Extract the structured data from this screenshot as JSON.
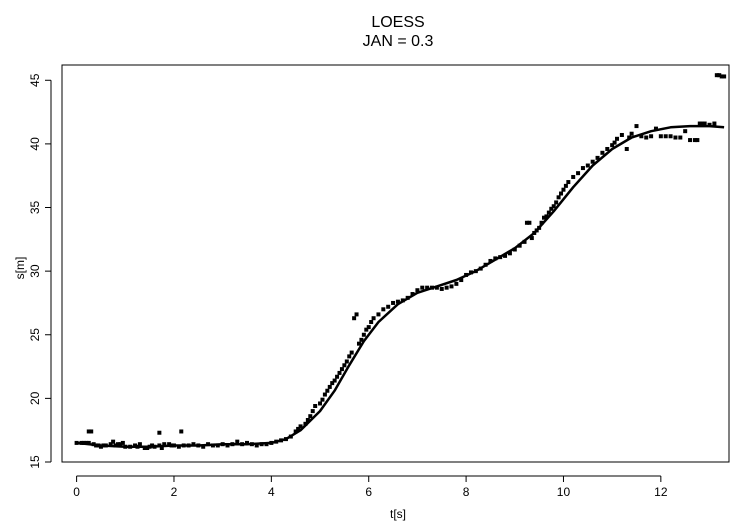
{
  "chart_data": {
    "type": "scatter",
    "title": "LOESS",
    "subtitle": "JAN = 0.3",
    "xlabel": "t[s]",
    "ylabel": "s[m]",
    "xlim": [
      -0.3,
      13.4
    ],
    "ylim": [
      15.0,
      46.2
    ],
    "x_ticks": [
      0,
      2,
      4,
      6,
      8,
      10,
      12
    ],
    "y_ticks": [
      15,
      20,
      25,
      30,
      35,
      40,
      45
    ],
    "x_tick_labels": [
      "0",
      "2",
      "4",
      "6",
      "8",
      "10",
      "12"
    ],
    "y_tick_labels": [
      "15",
      "20",
      "25",
      "30",
      "35",
      "40",
      "45"
    ],
    "grid": false,
    "legend": "none",
    "colors": {
      "points": "#000000",
      "line": "#000000",
      "axes": "#000000"
    },
    "series": [
      {
        "kind": "points",
        "points": [
          [
            0.0,
            16.5
          ],
          [
            0.1,
            16.5
          ],
          [
            0.15,
            16.5
          ],
          [
            0.2,
            16.5
          ],
          [
            0.25,
            16.5
          ],
          [
            0.25,
            17.4
          ],
          [
            0.3,
            17.4
          ],
          [
            0.35,
            16.4
          ],
          [
            0.4,
            16.3
          ],
          [
            0.45,
            16.3
          ],
          [
            0.5,
            16.2
          ],
          [
            0.55,
            16.3
          ],
          [
            0.6,
            16.3
          ],
          [
            0.7,
            16.4
          ],
          [
            0.75,
            16.6
          ],
          [
            0.8,
            16.3
          ],
          [
            0.85,
            16.4
          ],
          [
            0.9,
            16.4
          ],
          [
            0.95,
            16.5
          ],
          [
            1.0,
            16.2
          ],
          [
            1.1,
            16.2
          ],
          [
            1.2,
            16.3
          ],
          [
            1.25,
            16.2
          ],
          [
            1.3,
            16.4
          ],
          [
            1.4,
            16.1
          ],
          [
            1.45,
            16.1
          ],
          [
            1.5,
            16.2
          ],
          [
            1.55,
            16.3
          ],
          [
            1.6,
            16.2
          ],
          [
            1.7,
            16.3
          ],
          [
            1.7,
            17.3
          ],
          [
            1.75,
            16.1
          ],
          [
            1.8,
            16.4
          ],
          [
            1.9,
            16.4
          ],
          [
            1.95,
            16.3
          ],
          [
            2.0,
            16.3
          ],
          [
            2.1,
            16.2
          ],
          [
            2.15,
            17.4
          ],
          [
            2.2,
            16.3
          ],
          [
            2.3,
            16.3
          ],
          [
            2.4,
            16.4
          ],
          [
            2.5,
            16.3
          ],
          [
            2.6,
            16.2
          ],
          [
            2.7,
            16.4
          ],
          [
            2.8,
            16.3
          ],
          [
            2.9,
            16.3
          ],
          [
            3.0,
            16.4
          ],
          [
            3.1,
            16.3
          ],
          [
            3.2,
            16.4
          ],
          [
            3.3,
            16.6
          ],
          [
            3.4,
            16.4
          ],
          [
            3.5,
            16.5
          ],
          [
            3.6,
            16.4
          ],
          [
            3.7,
            16.3
          ],
          [
            3.8,
            16.4
          ],
          [
            3.9,
            16.4
          ],
          [
            4.0,
            16.5
          ],
          [
            4.1,
            16.6
          ],
          [
            4.2,
            16.7
          ],
          [
            4.3,
            16.8
          ],
          [
            4.4,
            17.0
          ],
          [
            4.5,
            17.4
          ],
          [
            4.55,
            17.6
          ],
          [
            4.6,
            17.8
          ],
          [
            4.7,
            18.0
          ],
          [
            4.75,
            18.3
          ],
          [
            4.8,
            18.6
          ],
          [
            4.85,
            19.0
          ],
          [
            4.9,
            19.4
          ],
          [
            5.0,
            19.6
          ],
          [
            5.05,
            19.9
          ],
          [
            5.1,
            20.3
          ],
          [
            5.15,
            20.6
          ],
          [
            5.2,
            20.9
          ],
          [
            5.25,
            21.2
          ],
          [
            5.3,
            21.4
          ],
          [
            5.35,
            21.7
          ],
          [
            5.4,
            22.0
          ],
          [
            5.45,
            22.3
          ],
          [
            5.5,
            22.6
          ],
          [
            5.55,
            22.9
          ],
          [
            5.6,
            23.3
          ],
          [
            5.65,
            23.6
          ],
          [
            5.7,
            26.3
          ],
          [
            5.75,
            26.6
          ],
          [
            5.8,
            24.3
          ],
          [
            5.85,
            24.6
          ],
          [
            5.9,
            25.0
          ],
          [
            5.95,
            25.4
          ],
          [
            6.0,
            25.6
          ],
          [
            6.05,
            26.0
          ],
          [
            6.1,
            26.3
          ],
          [
            6.2,
            26.6
          ],
          [
            6.3,
            27.0
          ],
          [
            6.4,
            27.2
          ],
          [
            6.5,
            27.5
          ],
          [
            6.6,
            27.6
          ],
          [
            6.7,
            27.7
          ],
          [
            6.8,
            27.9
          ],
          [
            6.9,
            28.2
          ],
          [
            7.0,
            28.5
          ],
          [
            7.1,
            28.7
          ],
          [
            7.2,
            28.7
          ],
          [
            7.3,
            28.7
          ],
          [
            7.4,
            28.7
          ],
          [
            7.5,
            28.6
          ],
          [
            7.6,
            28.7
          ],
          [
            7.7,
            28.8
          ],
          [
            7.8,
            29.0
          ],
          [
            7.9,
            29.3
          ],
          [
            8.0,
            29.7
          ],
          [
            8.1,
            29.9
          ],
          [
            8.2,
            30.0
          ],
          [
            8.3,
            30.2
          ],
          [
            8.4,
            30.5
          ],
          [
            8.5,
            30.8
          ],
          [
            8.6,
            31.0
          ],
          [
            8.7,
            31.1
          ],
          [
            8.8,
            31.2
          ],
          [
            8.9,
            31.4
          ],
          [
            9.0,
            31.7
          ],
          [
            9.1,
            32.0
          ],
          [
            9.2,
            32.3
          ],
          [
            9.25,
            33.8
          ],
          [
            9.3,
            33.8
          ],
          [
            9.35,
            32.6
          ],
          [
            9.4,
            33.0
          ],
          [
            9.45,
            33.2
          ],
          [
            9.5,
            33.4
          ],
          [
            9.55,
            33.8
          ],
          [
            9.6,
            34.2
          ],
          [
            9.65,
            34.3
          ],
          [
            9.7,
            34.6
          ],
          [
            9.75,
            34.9
          ],
          [
            9.8,
            35.1
          ],
          [
            9.85,
            35.4
          ],
          [
            9.9,
            35.8
          ],
          [
            9.95,
            36.1
          ],
          [
            10.0,
            36.4
          ],
          [
            10.05,
            36.7
          ],
          [
            10.1,
            37.0
          ],
          [
            10.2,
            37.4
          ],
          [
            10.3,
            37.7
          ],
          [
            10.4,
            38.1
          ],
          [
            10.5,
            38.3
          ],
          [
            10.6,
            38.6
          ],
          [
            10.7,
            38.9
          ],
          [
            10.8,
            39.3
          ],
          [
            10.9,
            39.6
          ],
          [
            11.0,
            39.9
          ],
          [
            11.05,
            40.1
          ],
          [
            11.1,
            40.4
          ],
          [
            11.2,
            40.7
          ],
          [
            11.3,
            39.6
          ],
          [
            11.35,
            40.5
          ],
          [
            11.4,
            40.8
          ],
          [
            11.5,
            41.4
          ],
          [
            11.6,
            40.6
          ],
          [
            11.7,
            40.5
          ],
          [
            11.8,
            40.6
          ],
          [
            11.9,
            41.2
          ],
          [
            12.0,
            40.6
          ],
          [
            12.1,
            40.6
          ],
          [
            12.2,
            40.6
          ],
          [
            12.3,
            40.5
          ],
          [
            12.4,
            40.5
          ],
          [
            12.5,
            41.0
          ],
          [
            12.6,
            40.3
          ],
          [
            12.7,
            40.3
          ],
          [
            12.75,
            40.3
          ],
          [
            12.8,
            41.6
          ],
          [
            12.85,
            41.6
          ],
          [
            12.9,
            41.6
          ],
          [
            13.0,
            41.5
          ],
          [
            13.1,
            41.6
          ],
          [
            13.15,
            45.4
          ],
          [
            13.2,
            45.4
          ],
          [
            13.25,
            45.3
          ],
          [
            13.3,
            45.3
          ]
        ]
      },
      {
        "kind": "line",
        "points": [
          [
            0.0,
            16.5
          ],
          [
            0.5,
            16.3
          ],
          [
            1.0,
            16.2
          ],
          [
            1.5,
            16.2
          ],
          [
            2.0,
            16.3
          ],
          [
            2.5,
            16.3
          ],
          [
            3.0,
            16.4
          ],
          [
            3.5,
            16.4
          ],
          [
            4.0,
            16.5
          ],
          [
            4.3,
            16.8
          ],
          [
            4.6,
            17.5
          ],
          [
            5.0,
            19.0
          ],
          [
            5.3,
            20.6
          ],
          [
            5.6,
            22.6
          ],
          [
            5.9,
            24.5
          ],
          [
            6.2,
            26.0
          ],
          [
            6.6,
            27.4
          ],
          [
            7.0,
            28.3
          ],
          [
            7.4,
            28.8
          ],
          [
            7.8,
            29.3
          ],
          [
            8.2,
            30.0
          ],
          [
            8.6,
            30.9
          ],
          [
            9.0,
            31.8
          ],
          [
            9.4,
            33.0
          ],
          [
            9.8,
            34.7
          ],
          [
            10.2,
            36.6
          ],
          [
            10.6,
            38.3
          ],
          [
            11.0,
            39.6
          ],
          [
            11.4,
            40.5
          ],
          [
            11.8,
            41.0
          ],
          [
            12.2,
            41.3
          ],
          [
            12.6,
            41.4
          ],
          [
            13.0,
            41.4
          ],
          [
            13.3,
            41.3
          ]
        ]
      }
    ]
  }
}
